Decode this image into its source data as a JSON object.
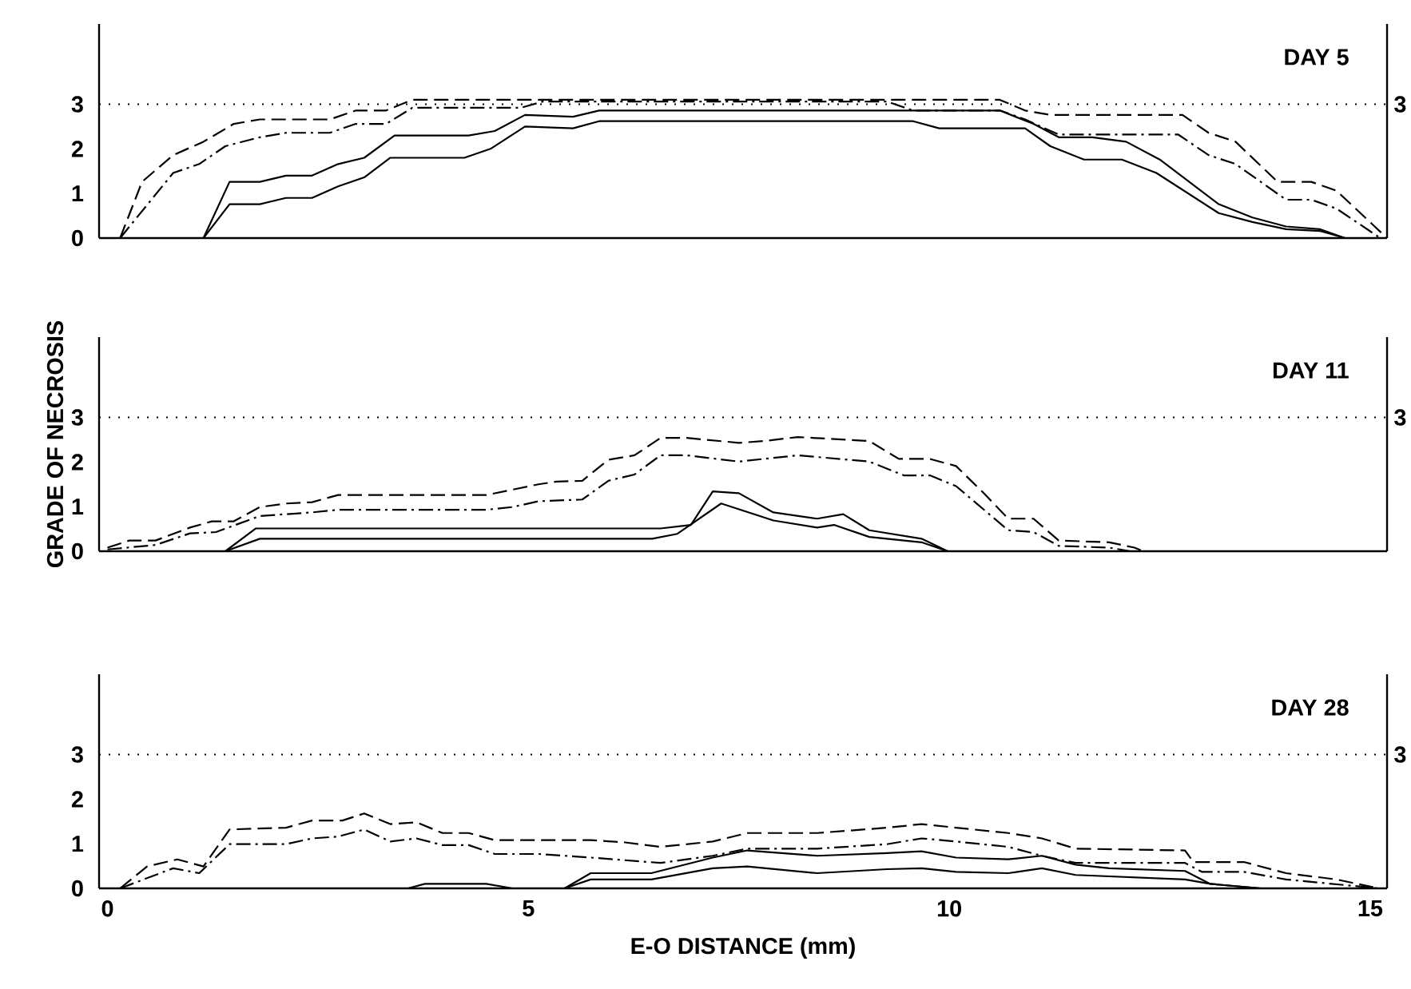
{
  "chart_data": [
    {
      "type": "line",
      "title": "DAY 5",
      "xlim": [
        -0.1,
        15.2
      ],
      "ylim": [
        0,
        4.8
      ],
      "yticks": [
        0,
        1,
        2,
        3
      ],
      "tick_labels": "y",
      "marker": "none",
      "ref_lines": [
        {
          "axis": "y",
          "value": 3,
          "label": "3",
          "line_style": "dotted",
          "color": "#000000"
        }
      ],
      "series": [
        {
          "color": "#000000",
          "line_style": "solid",
          "x": [
            1.14,
            1.45,
            1.81,
            2.12,
            2.43,
            2.74,
            3.05,
            3.36,
            4.24,
            4.55,
            4.96,
            5.53,
            5.84,
            9.57,
            9.88,
            10.9,
            11.2,
            11.6,
            12.05,
            12.46,
            13.2,
            13.6,
            14.0,
            14.4,
            14.7
          ],
          "values": [
            0,
            0.76,
            0.76,
            0.9,
            0.9,
            1.16,
            1.36,
            1.8,
            1.8,
            2.0,
            2.5,
            2.46,
            2.62,
            2.62,
            2.46,
            2.46,
            2.06,
            1.76,
            1.76,
            1.46,
            0.56,
            0.36,
            0.2,
            0.16,
            0
          ]
        },
        {
          "color": "#000000",
          "line_style": "solid",
          "x": [
            1.14,
            1.45,
            1.81,
            2.12,
            2.43,
            2.74,
            3.05,
            3.41,
            4.29,
            4.6,
            4.96,
            5.53,
            5.84,
            10.6,
            11.0,
            11.3,
            11.7,
            12.1,
            12.5,
            13.2,
            13.6,
            14.0,
            14.4,
            14.7
          ],
          "values": [
            0,
            1.26,
            1.26,
            1.4,
            1.4,
            1.66,
            1.8,
            2.3,
            2.3,
            2.4,
            2.76,
            2.72,
            2.86,
            2.86,
            2.56,
            2.26,
            2.26,
            2.16,
            1.76,
            0.76,
            0.46,
            0.26,
            0.2,
            0
          ]
        },
        {
          "color": "#000000",
          "line_style": "dashdot",
          "x": [
            0.15,
            0.78,
            1.09,
            1.4,
            1.81,
            2.12,
            2.64,
            2.95,
            3.31,
            3.62,
            4.91,
            5.17,
            9.26,
            9.57,
            10.6,
            10.9,
            11.3,
            12.72,
            13.08,
            13.4,
            14.0,
            14.3,
            14.6,
            15.12
          ],
          "values": [
            0,
            1.46,
            1.66,
            2.06,
            2.26,
            2.36,
            2.36,
            2.56,
            2.56,
            2.92,
            2.92,
            3.06,
            3.06,
            2.86,
            2.86,
            2.66,
            2.32,
            2.32,
            1.86,
            1.66,
            0.86,
            0.86,
            0.66,
            0
          ]
        },
        {
          "color": "#000000",
          "line_style": "dashed",
          "x": [
            0.15,
            0.41,
            0.78,
            1.14,
            1.5,
            1.81,
            2.64,
            2.95,
            3.31,
            3.62,
            10.6,
            10.9,
            11.2,
            12.77,
            13.08,
            13.4,
            13.9,
            14.3,
            14.6,
            15.2
          ],
          "values": [
            0,
            1.26,
            1.86,
            2.16,
            2.56,
            2.66,
            2.66,
            2.86,
            2.86,
            3.1,
            3.1,
            2.86,
            2.76,
            2.76,
            2.36,
            2.16,
            1.26,
            1.26,
            1.06,
            0
          ]
        }
      ]
    },
    {
      "type": "line",
      "title": "DAY 11",
      "ylabel": "GRADE OF NECROSIS",
      "xlim": [
        -0.1,
        15.2
      ],
      "ylim": [
        0,
        4.8
      ],
      "yticks": [
        0,
        1,
        2,
        3
      ],
      "tick_labels": "y",
      "marker": "none",
      "ref_lines": [
        {
          "axis": "y",
          "value": 3,
          "label": "3",
          "line_style": "dotted",
          "color": "#000000"
        }
      ],
      "series": [
        {
          "color": "#000000",
          "line_style": "solid",
          "x": [
            1.4,
            1.81,
            6.47,
            6.77,
            7.29,
            7.91,
            8.43,
            8.63,
            9.05,
            9.67,
            9.98
          ],
          "values": [
            0,
            0.28,
            0.28,
            0.39,
            1.07,
            0.69,
            0.53,
            0.59,
            0.32,
            0.2,
            0
          ]
        },
        {
          "color": "#000000",
          "line_style": "solid",
          "x": [
            1.4,
            1.76,
            6.57,
            6.93,
            7.19,
            7.5,
            7.91,
            8.43,
            8.74,
            9.05,
            9.67,
            9.98
          ],
          "values": [
            0,
            0.51,
            0.51,
            0.59,
            1.34,
            1.3,
            0.87,
            0.73,
            0.83,
            0.47,
            0.28,
            0
          ]
        },
        {
          "color": "#000000",
          "line_style": "dashdot",
          "x": [
            0,
            0.57,
            0.98,
            1.29,
            1.81,
            2.12,
            2.43,
            2.74,
            4.5,
            4.81,
            5.12,
            5.64,
            5.95,
            6.26,
            6.57,
            6.88,
            7.5,
            8.2,
            9.05,
            9.46,
            9.77,
            10.08,
            10.7,
            11.0,
            11.3,
            11.9,
            12.15
          ],
          "values": [
            0.04,
            0.14,
            0.4,
            0.43,
            0.79,
            0.83,
            0.87,
            0.93,
            0.93,
            0.99,
            1.12,
            1.16,
            1.58,
            1.72,
            2.15,
            2.15,
            2.01,
            2.15,
            2.01,
            1.7,
            1.7,
            1.46,
            0.47,
            0.43,
            0.12,
            0.08,
            0
          ]
        },
        {
          "color": "#000000",
          "line_style": "dashed",
          "x": [
            0,
            0.26,
            0.57,
            0.98,
            1.24,
            1.5,
            1.81,
            2.12,
            2.43,
            2.74,
            4.5,
            5.12,
            5.33,
            5.64,
            5.95,
            6.26,
            6.57,
            6.88,
            7.5,
            7.8,
            8.2,
            9.05,
            9.4,
            9.77,
            10.08,
            10.4,
            10.7,
            11.0,
            11.3,
            11.9,
            12.2,
            12.3
          ],
          "values": [
            0.08,
            0.24,
            0.24,
            0.53,
            0.67,
            0.67,
            0.99,
            1.07,
            1.1,
            1.26,
            1.26,
            1.5,
            1.56,
            1.58,
            2.05,
            2.15,
            2.54,
            2.54,
            2.43,
            2.47,
            2.56,
            2.47,
            2.07,
            2.07,
            1.91,
            1.32,
            0.73,
            0.73,
            0.24,
            0.2,
            0.08,
            0
          ]
        }
      ]
    },
    {
      "type": "line",
      "title": "DAY 28",
      "xlabel": "E-O DISTANCE (mm)",
      "xlim": [
        -0.1,
        15.2
      ],
      "xticks": [
        0,
        5,
        10,
        15
      ],
      "ylim": [
        0,
        4.8
      ],
      "yticks": [
        0,
        1,
        2,
        3
      ],
      "marker": "none",
      "ref_lines": [
        {
          "axis": "y",
          "value": 3,
          "label": "3",
          "line_style": "dotted",
          "color": "#000000"
        }
      ],
      "series": [
        {
          "color": "#000000",
          "line_style": "solid",
          "x": [
            5.43,
            5.74,
            6.46,
            7.19,
            7.6,
            8.43,
            9.26,
            9.67,
            10.08,
            10.7,
            11.1,
            11.5,
            12.8,
            13.1,
            13.7
          ],
          "values": [
            0,
            0.2,
            0.2,
            0.45,
            0.49,
            0.34,
            0.43,
            0.45,
            0.37,
            0.34,
            0.45,
            0.3,
            0.2,
            0.1,
            0
          ]
        },
        {
          "color": "#000000",
          "line_style": "solid",
          "x": [
            3.57,
            3.77,
            4.5,
            4.81,
            5.1,
            5.43,
            5.74,
            6.46,
            7.19,
            7.6,
            8.43,
            9.26,
            9.67,
            10.08,
            10.7,
            11.1,
            11.5,
            11.9,
            12.8,
            13.1,
            13.7
          ],
          "values": [
            0,
            0.1,
            0.1,
            0,
            null,
            0,
            0.34,
            0.34,
            0.69,
            0.85,
            0.73,
            0.79,
            0.83,
            0.69,
            0.65,
            0.73,
            0.53,
            0.45,
            0.39,
            0.1,
            0
          ]
        },
        {
          "color": "#000000",
          "line_style": "dashdot",
          "x": [
            0.15,
            0.78,
            1.09,
            1.45,
            2.12,
            2.43,
            2.74,
            3.05,
            3.36,
            3.67,
            3.98,
            4.29,
            4.6,
            5.12,
            5.74,
            6.57,
            7.19,
            7.6,
            8.43,
            9.26,
            9.67,
            10.08,
            10.7,
            11.1,
            11.5,
            12.8,
            13.0,
            13.5,
            14.0,
            15.1
          ],
          "values": [
            0,
            0.45,
            0.34,
            0.99,
            0.99,
            1.12,
            1.16,
            1.32,
            1.05,
            1.12,
            0.97,
            0.97,
            0.77,
            0.77,
            0.69,
            0.57,
            0.73,
            0.89,
            0.89,
            0.99,
            1.12,
            1.05,
            0.93,
            0.73,
            0.57,
            0.57,
            0.37,
            0.37,
            0.2,
            0
          ]
        },
        {
          "color": "#000000",
          "line_style": "dashed",
          "x": [
            0.15,
            0.47,
            0.83,
            1.14,
            1.45,
            2.12,
            2.43,
            2.79,
            3.05,
            3.36,
            3.67,
            3.98,
            4.29,
            4.6,
            5.74,
            6.15,
            6.57,
            7.19,
            7.6,
            8.43,
            9.26,
            9.67,
            10.08,
            10.7,
            11.1,
            11.5,
            12.8,
            12.9,
            13.5,
            14.0,
            14.6,
            15.1
          ],
          "values": [
            0,
            0.49,
            0.65,
            0.49,
            1.32,
            1.36,
            1.52,
            1.52,
            1.68,
            1.44,
            1.48,
            1.24,
            1.24,
            1.08,
            1.08,
            1.03,
            0.93,
            1.05,
            1.24,
            1.24,
            1.36,
            1.44,
            1.36,
            1.24,
            1.12,
            0.89,
            0.85,
            0.59,
            0.59,
            0.34,
            0.2,
            0
          ]
        }
      ]
    }
  ]
}
